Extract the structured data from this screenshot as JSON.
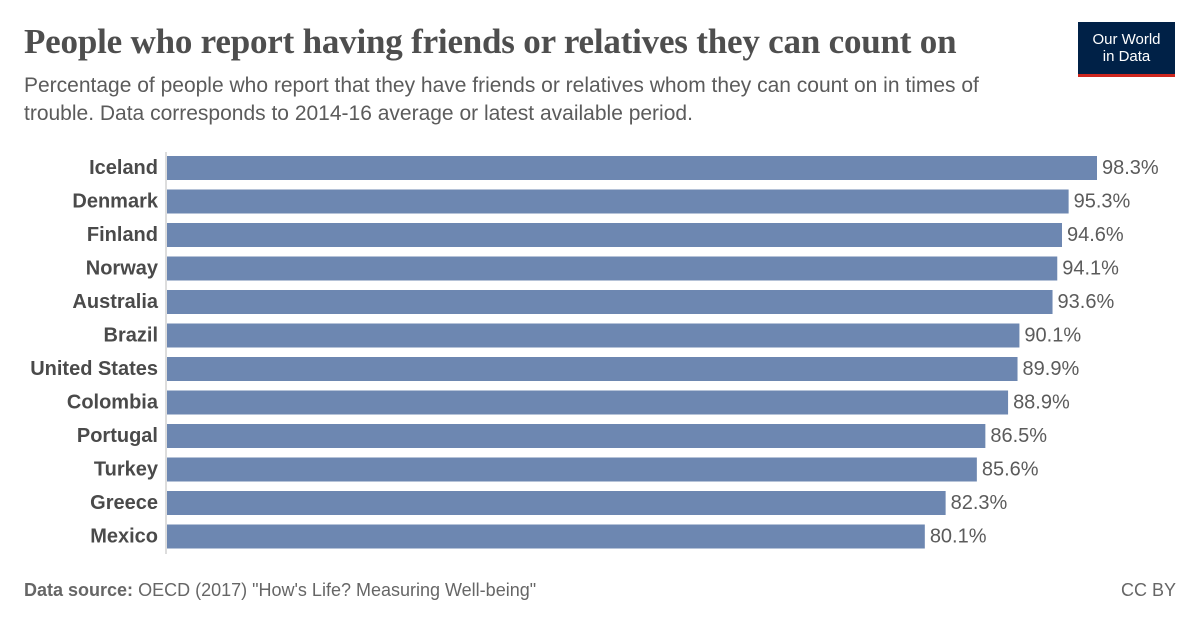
{
  "header": {
    "title": "People who report having friends or relatives they can count on",
    "subtitle": "Percentage of people who report that they have friends or relatives whom they can count on in times of trouble. Data corresponds to 2014-16 average or latest available period."
  },
  "logo": {
    "line1": "Our World",
    "line2": "in Data",
    "bg_color": "#002147",
    "accent_color": "#ce261e"
  },
  "footer": {
    "source_label": "Data source:",
    "source_text": "OECD (2017) \"How's Life? Measuring Well-being\"",
    "license": "CC BY"
  },
  "chart_data": {
    "type": "bar",
    "orientation": "horizontal",
    "categories": [
      "Iceland",
      "Denmark",
      "Finland",
      "Norway",
      "Australia",
      "Brazil",
      "United States",
      "Colombia",
      "Portugal",
      "Turkey",
      "Greece",
      "Mexico"
    ],
    "values": [
      98.3,
      95.3,
      94.6,
      94.1,
      93.6,
      90.1,
      89.9,
      88.9,
      86.5,
      85.6,
      82.3,
      80.1
    ],
    "value_labels": [
      "98.3%",
      "95.3%",
      "94.6%",
      "94.1%",
      "93.6%",
      "90.1%",
      "89.9%",
      "88.9%",
      "86.5%",
      "85.6%",
      "82.3%",
      "80.1%"
    ],
    "xlim": [
      0,
      98.3
    ],
    "bar_color": "#6d87b1",
    "grid": false
  }
}
